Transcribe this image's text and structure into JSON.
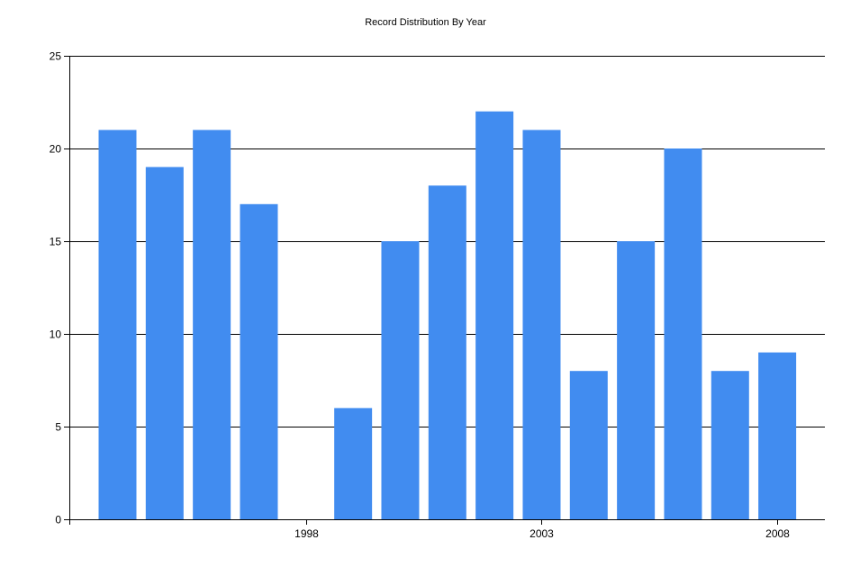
{
  "chart_data": {
    "type": "bar",
    "title": "Record Distribution By Year",
    "xlabel": "",
    "ylabel": "",
    "categories": [
      "1994",
      "1995",
      "1996",
      "1997",
      "1998",
      "1999",
      "2000",
      "2001",
      "2002",
      "2003",
      "2004",
      "2005",
      "2006",
      "2007",
      "2008"
    ],
    "values": [
      21,
      19,
      21,
      17,
      0,
      6,
      15,
      18,
      22,
      21,
      8,
      15,
      20,
      8,
      9
    ],
    "ylim": [
      0,
      25
    ],
    "yticks": [
      0,
      5,
      10,
      15,
      20,
      25
    ],
    "xticks": [
      "1998",
      "2003",
      "2008"
    ],
    "grid": true,
    "legend": null,
    "bar_color": "#418CF0",
    "grid_color": "#000000"
  },
  "labels": {
    "title": "Record Distribution By Year"
  }
}
